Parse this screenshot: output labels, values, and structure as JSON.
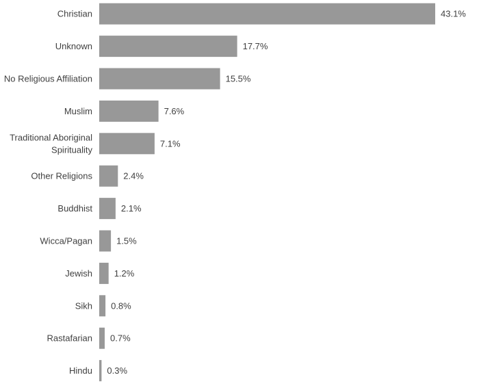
{
  "chart_data": {
    "type": "bar",
    "orientation": "horizontal",
    "categories": [
      "Christian",
      "Unknown",
      "No Religious Affiliation",
      "Muslim",
      "Traditional Aboriginal Spirituality",
      "Other Religions",
      "Buddhist",
      "Wicca/Pagan",
      "Jewish",
      "Sikh",
      "Rastafarian",
      "Hindu"
    ],
    "category_lines": [
      [
        "Christian"
      ],
      [
        "Unknown"
      ],
      [
        "No Religious Affiliation"
      ],
      [
        "Muslim"
      ],
      [
        "Traditional Aboriginal",
        "Spirituality"
      ],
      [
        "Other Religions"
      ],
      [
        "Buddhist"
      ],
      [
        "Wicca/Pagan"
      ],
      [
        "Jewish"
      ],
      [
        "Sikh"
      ],
      [
        "Rastafarian"
      ],
      [
        "Hindu"
      ]
    ],
    "values": [
      43.1,
      17.7,
      15.5,
      7.6,
      7.1,
      2.4,
      2.1,
      1.5,
      1.2,
      0.8,
      0.7,
      0.3
    ],
    "value_labels": [
      "43.1%",
      "17.7%",
      "15.5%",
      "7.6%",
      "7.1%",
      "2.4%",
      "2.1%",
      "1.5%",
      "1.2%",
      "0.8%",
      "0.7%",
      "0.3%"
    ],
    "title": "",
    "xlabel": "",
    "ylabel": "",
    "xlim": [
      0,
      43.1
    ],
    "grid": false,
    "legend": "none",
    "bar_color": "#989898",
    "text_color": "#404040"
  }
}
